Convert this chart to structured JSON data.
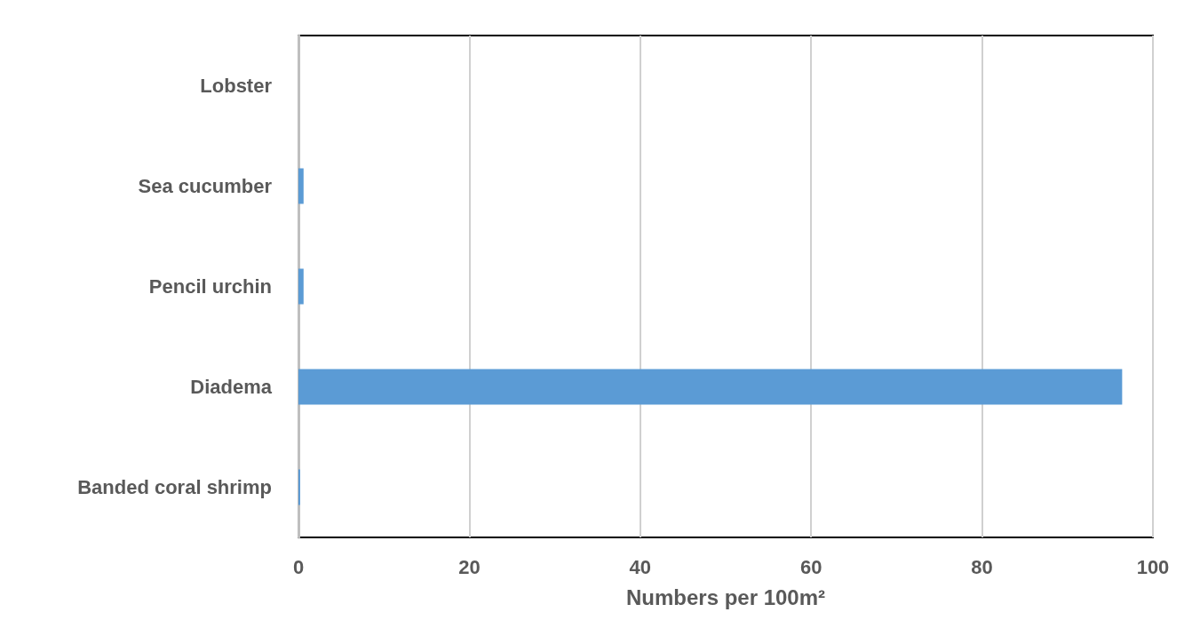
{
  "chart_data": {
    "type": "bar",
    "orientation": "horizontal",
    "categories": [
      "Lobster",
      "Sea cucumber",
      "Pencil urchin",
      "Diadema",
      "Banded coral shrimp"
    ],
    "values": [
      0,
      0.6,
      0.6,
      96.4,
      0.2
    ],
    "color": "#5b9bd5",
    "xlabel": "Numbers per 100m²",
    "xlim": [
      0,
      100
    ],
    "xticks": [
      0,
      20,
      40,
      60,
      80,
      100
    ],
    "grid": "x"
  }
}
